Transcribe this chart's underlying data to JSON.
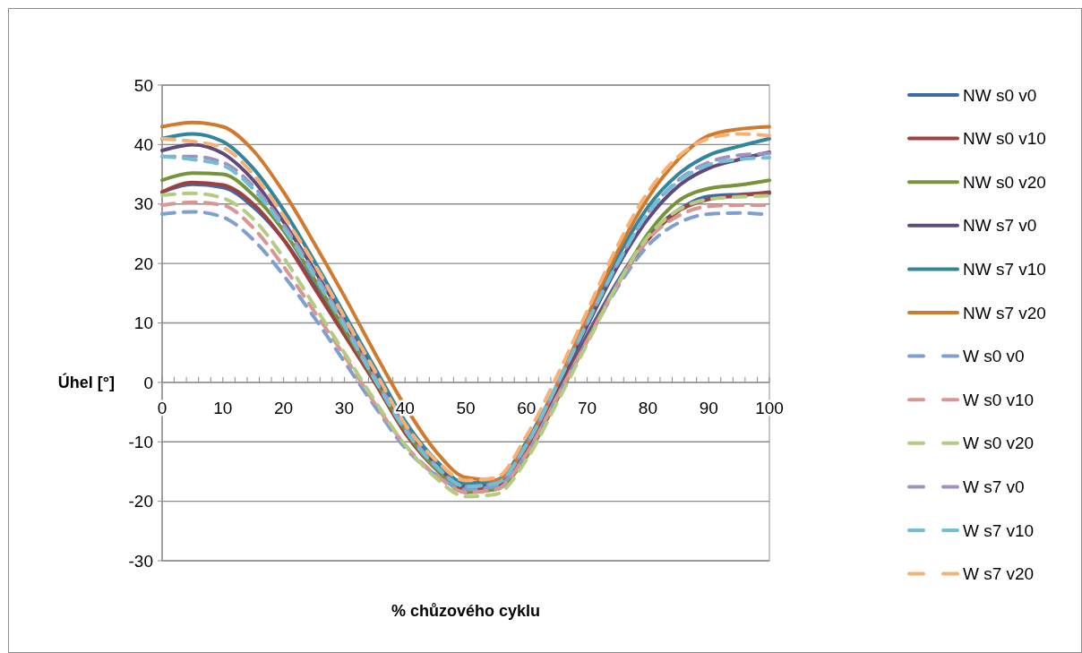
{
  "chart_data": {
    "type": "line",
    "xlabel": "% chůzového cyklu",
    "ylabel": "Úhel [°]",
    "xlim": [
      0,
      100
    ],
    "ylim": [
      -30,
      50
    ],
    "xticks": [
      0,
      {
        "value": 2,
        "label": null
      },
      {
        "value": 4,
        "label": null
      },
      {
        "value": 6,
        "label": null
      },
      {
        "value": 8,
        "label": null
      },
      10,
      {
        "value": 12,
        "label": null
      },
      {
        "value": 14,
        "label": null
      },
      {
        "value": 16,
        "label": null
      },
      {
        "value": 18,
        "label": null
      },
      20,
      {
        "value": 22,
        "label": null
      },
      {
        "value": 24,
        "label": null
      },
      {
        "value": 26,
        "label": null
      },
      {
        "value": 28,
        "label": null
      },
      30,
      {
        "value": 32,
        "label": null
      },
      {
        "value": 34,
        "label": null
      },
      {
        "value": 36,
        "label": null
      },
      {
        "value": 38,
        "label": null
      },
      40,
      {
        "value": 42,
        "label": null
      },
      {
        "value": 44,
        "label": null
      },
      {
        "value": 46,
        "label": null
      },
      {
        "value": 48,
        "label": null
      },
      50,
      {
        "value": 52,
        "label": null
      },
      {
        "value": 54,
        "label": null
      },
      {
        "value": 56,
        "label": null
      },
      {
        "value": 58,
        "label": null
      },
      60,
      {
        "value": 62,
        "label": null
      },
      {
        "value": 64,
        "label": null
      },
      {
        "value": 66,
        "label": null
      },
      {
        "value": 68,
        "label": null
      },
      70,
      {
        "value": 72,
        "label": null
      },
      {
        "value": 74,
        "label": null
      },
      {
        "value": 76,
        "label": null
      },
      {
        "value": 78,
        "label": null
      },
      80,
      {
        "value": 82,
        "label": null
      },
      {
        "value": 84,
        "label": null
      },
      {
        "value": 86,
        "label": null
      },
      {
        "value": 88,
        "label": null
      },
      90,
      {
        "value": 92,
        "label": null
      },
      {
        "value": 94,
        "label": null
      },
      {
        "value": 96,
        "label": null
      },
      {
        "value": 98,
        "label": null
      },
      100
    ],
    "yticks": [
      -30,
      -20,
      -10,
      0,
      10,
      20,
      30,
      40,
      50
    ],
    "grid": "y",
    "legend": "right",
    "marker": "none",
    "x": [
      0,
      5,
      10,
      15,
      20,
      25,
      30,
      35,
      40,
      45,
      50,
      55,
      60,
      65,
      70,
      75,
      80,
      85,
      90,
      95,
      100
    ],
    "series": [
      {
        "name": "NW s0 v0",
        "color": "#3f6aa8",
        "line_style": "solid",
        "values": [
          32,
          33.3,
          32.8,
          29.5,
          24,
          16.5,
          8.5,
          0.5,
          -8,
          -14,
          -17.5,
          -17,
          -11,
          -1.5,
          8,
          17,
          24.5,
          29,
          31.3,
          31.6,
          31.8
        ]
      },
      {
        "name": "NW s0 v10",
        "color": "#a0403d",
        "line_style": "solid",
        "values": [
          32,
          33.6,
          33.2,
          30,
          24,
          16,
          8,
          0,
          -8.5,
          -14.5,
          -18,
          -17.5,
          -11.5,
          -2,
          7.5,
          16.5,
          24,
          28.8,
          30.8,
          31.4,
          32
        ]
      },
      {
        "name": "NW s0 v20",
        "color": "#77933c",
        "line_style": "solid",
        "values": [
          34,
          35.2,
          35,
          31.5,
          25.5,
          17.5,
          9,
          0.5,
          -8,
          -14.5,
          -18.5,
          -18,
          -12.5,
          -3,
          7,
          16.5,
          25,
          30.5,
          32.6,
          33.2,
          34
        ]
      },
      {
        "name": "NW s7 v0",
        "color": "#604a7b",
        "line_style": "solid",
        "values": [
          39,
          40,
          38.5,
          34,
          27,
          19,
          10.5,
          1.5,
          -7,
          -13.5,
          -17,
          -16.5,
          -10.5,
          -1,
          9.5,
          19.5,
          27.5,
          33,
          36,
          37.5,
          38.7
        ]
      },
      {
        "name": "NW s7 v10",
        "color": "#31859c",
        "line_style": "solid",
        "values": [
          41,
          41.8,
          40.5,
          36,
          29,
          20.5,
          11.5,
          2.5,
          -6.5,
          -13,
          -17,
          -16.5,
          -10,
          -0.5,
          10.5,
          21,
          29.5,
          35,
          38.2,
          39.7,
          41
        ]
      },
      {
        "name": "NW s7 v20",
        "color": "#d07a2e",
        "line_style": "solid",
        "values": [
          43,
          43.7,
          43,
          39,
          32,
          23.5,
          14.5,
          5,
          -4,
          -11.5,
          -16,
          -16.5,
          -10.5,
          -0.5,
          11,
          22,
          31,
          37.5,
          41.5,
          42.6,
          43
        ]
      },
      {
        "name": "W s0 v0",
        "color": "#7f9fd0",
        "line_style": "dashed",
        "values": [
          28.3,
          28.7,
          27.8,
          24,
          18,
          11,
          3.5,
          -4,
          -11,
          -15.5,
          -18,
          -17.5,
          -12,
          -2.5,
          7,
          16,
          23,
          26.8,
          28.3,
          28.5,
          28.2
        ]
      },
      {
        "name": "W s0 v10",
        "color": "#d99694",
        "line_style": "dashed",
        "values": [
          29.8,
          30.3,
          29.8,
          26,
          19.5,
          12,
          4.5,
          -3.5,
          -10.5,
          -15.5,
          -18.5,
          -18,
          -12,
          -2.5,
          7,
          16.5,
          24,
          28,
          29.6,
          29.8,
          29.8
        ]
      },
      {
        "name": "W s0 v20",
        "color": "#b3cc82",
        "line_style": "dashed",
        "values": [
          31.5,
          31.8,
          31,
          27.5,
          21,
          13,
          5,
          -3,
          -10.5,
          -16,
          -19.2,
          -18.8,
          -13,
          -3.5,
          6.5,
          16.5,
          24.5,
          29,
          30.8,
          31.2,
          31.4
        ]
      },
      {
        "name": "W s7 v0",
        "color": "#a490c0",
        "line_style": "dashed",
        "values": [
          38,
          38,
          37,
          33,
          26.5,
          18.5,
          10,
          1,
          -7.5,
          -14,
          -17.5,
          -17,
          -10.5,
          -0.5,
          10,
          20,
          28.5,
          34,
          37,
          38.2,
          38.5
        ]
      },
      {
        "name": "W s7 v10",
        "color": "#72bfd4",
        "line_style": "dashed",
        "values": [
          38,
          37.5,
          36.5,
          32.5,
          26,
          18,
          9.5,
          0.5,
          -8,
          -14,
          -17.5,
          -17,
          -10.5,
          -0.5,
          10,
          20,
          28.5,
          33.8,
          36.6,
          37.5,
          37.8
        ]
      },
      {
        "name": "W s7 v20",
        "color": "#f8b074",
        "line_style": "dashed",
        "values": [
          41,
          40.5,
          39.5,
          35,
          28,
          20,
          11,
          2,
          -7,
          -13,
          -16.5,
          -16,
          -9,
          1,
          12,
          23,
          32,
          38,
          41,
          41.8,
          41.5
        ]
      }
    ]
  }
}
